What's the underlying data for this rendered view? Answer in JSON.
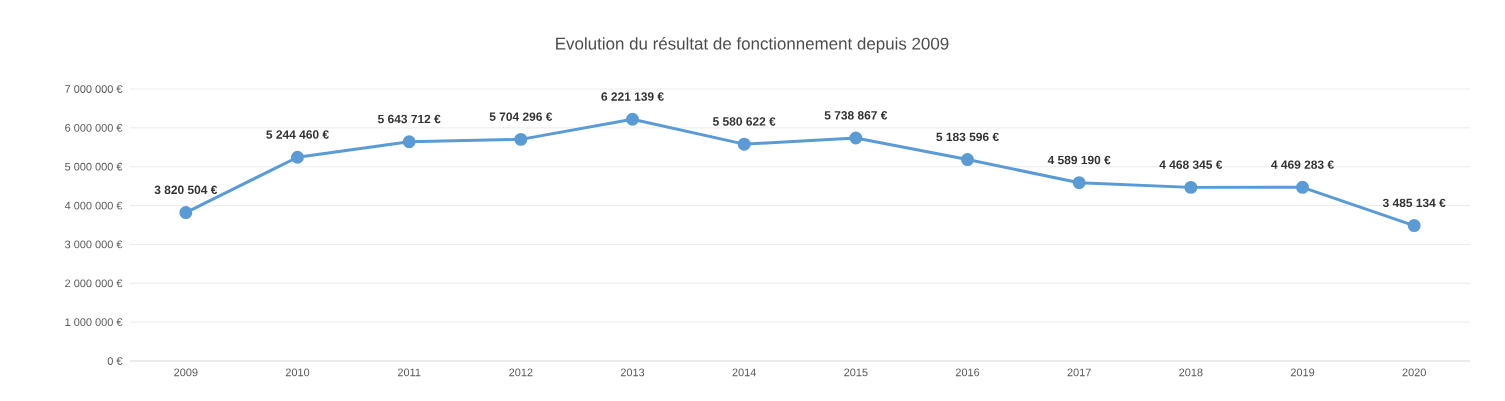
{
  "chart_data": {
    "type": "line",
    "title": "Evolution du résultat de fonctionnement depuis 2009",
    "categories": [
      "2009",
      "2010",
      "2011",
      "2012",
      "2013",
      "2014",
      "2015",
      "2016",
      "2017",
      "2018",
      "2019",
      "2020"
    ],
    "values": [
      3820504,
      5244460,
      5643712,
      5704296,
      6221139,
      5580622,
      5738867,
      5183596,
      4589190,
      4468345,
      4469283,
      3485134
    ],
    "value_labels": [
      "3 820 504 €",
      "5 244 460 €",
      "5 643 712 €",
      "5 704 296 €",
      "6 221 139 €",
      "5 580 622 €",
      "5 738 867 €",
      "5 183 596 €",
      "4 589 190 €",
      "4 468 345 €",
      "4 469 283 €",
      "3 485 134 €"
    ],
    "color": "#5b9bd5",
    "marker": "circle",
    "line_style": "solid",
    "grid": "y",
    "ylim": [
      0,
      7000000
    ],
    "yticks": [
      {
        "value": 0,
        "label": "0 €"
      },
      {
        "value": 1000000,
        "label": "1 000 000 €"
      },
      {
        "value": 2000000,
        "label": "2 000 000 €"
      },
      {
        "value": 3000000,
        "label": "3 000 000 €"
      },
      {
        "value": 4000000,
        "label": "4 000 000 €"
      },
      {
        "value": 5000000,
        "label": "5 000 000 €"
      },
      {
        "value": 6000000,
        "label": "6 000 000 €"
      },
      {
        "value": 7000000,
        "label": "7 000 000 €"
      }
    ]
  }
}
